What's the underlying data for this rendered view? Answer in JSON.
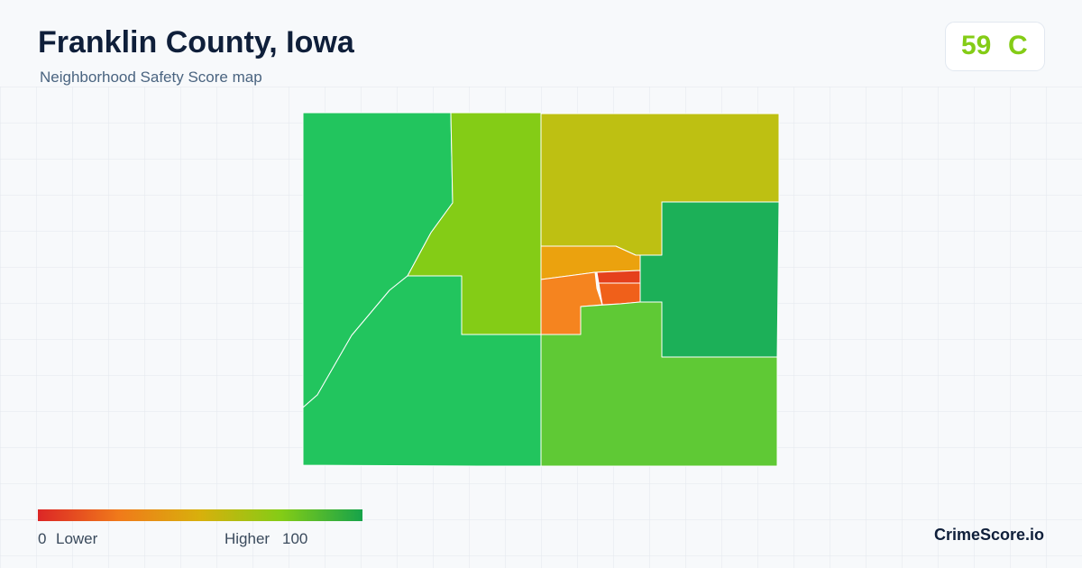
{
  "header": {
    "title": "Franklin County, Iowa",
    "subtitle": "Neighborhood Safety Score map"
  },
  "score": {
    "value": "59",
    "grade": "C"
  },
  "legend": {
    "min": "0",
    "min_label": "Lower",
    "max_label": "Higher",
    "max": "100"
  },
  "footer": {
    "brand": "CrimeScore.io"
  }
}
